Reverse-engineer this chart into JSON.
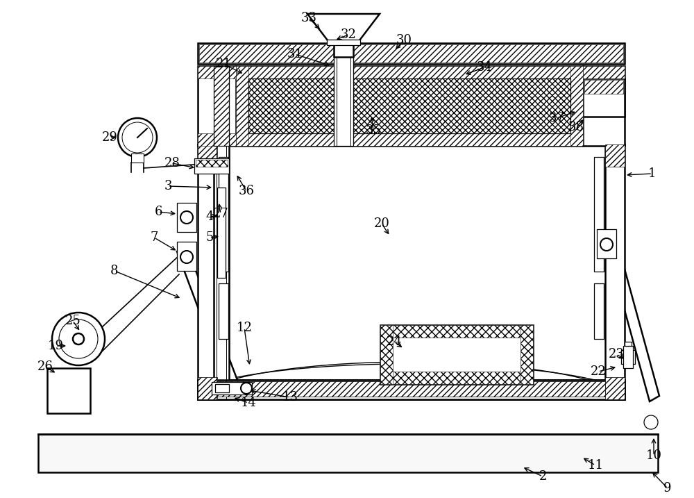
{
  "bg_color": "#ffffff",
  "line_color": "#000000",
  "figsize": [
    10.0,
    7.17
  ],
  "dpi": 100
}
